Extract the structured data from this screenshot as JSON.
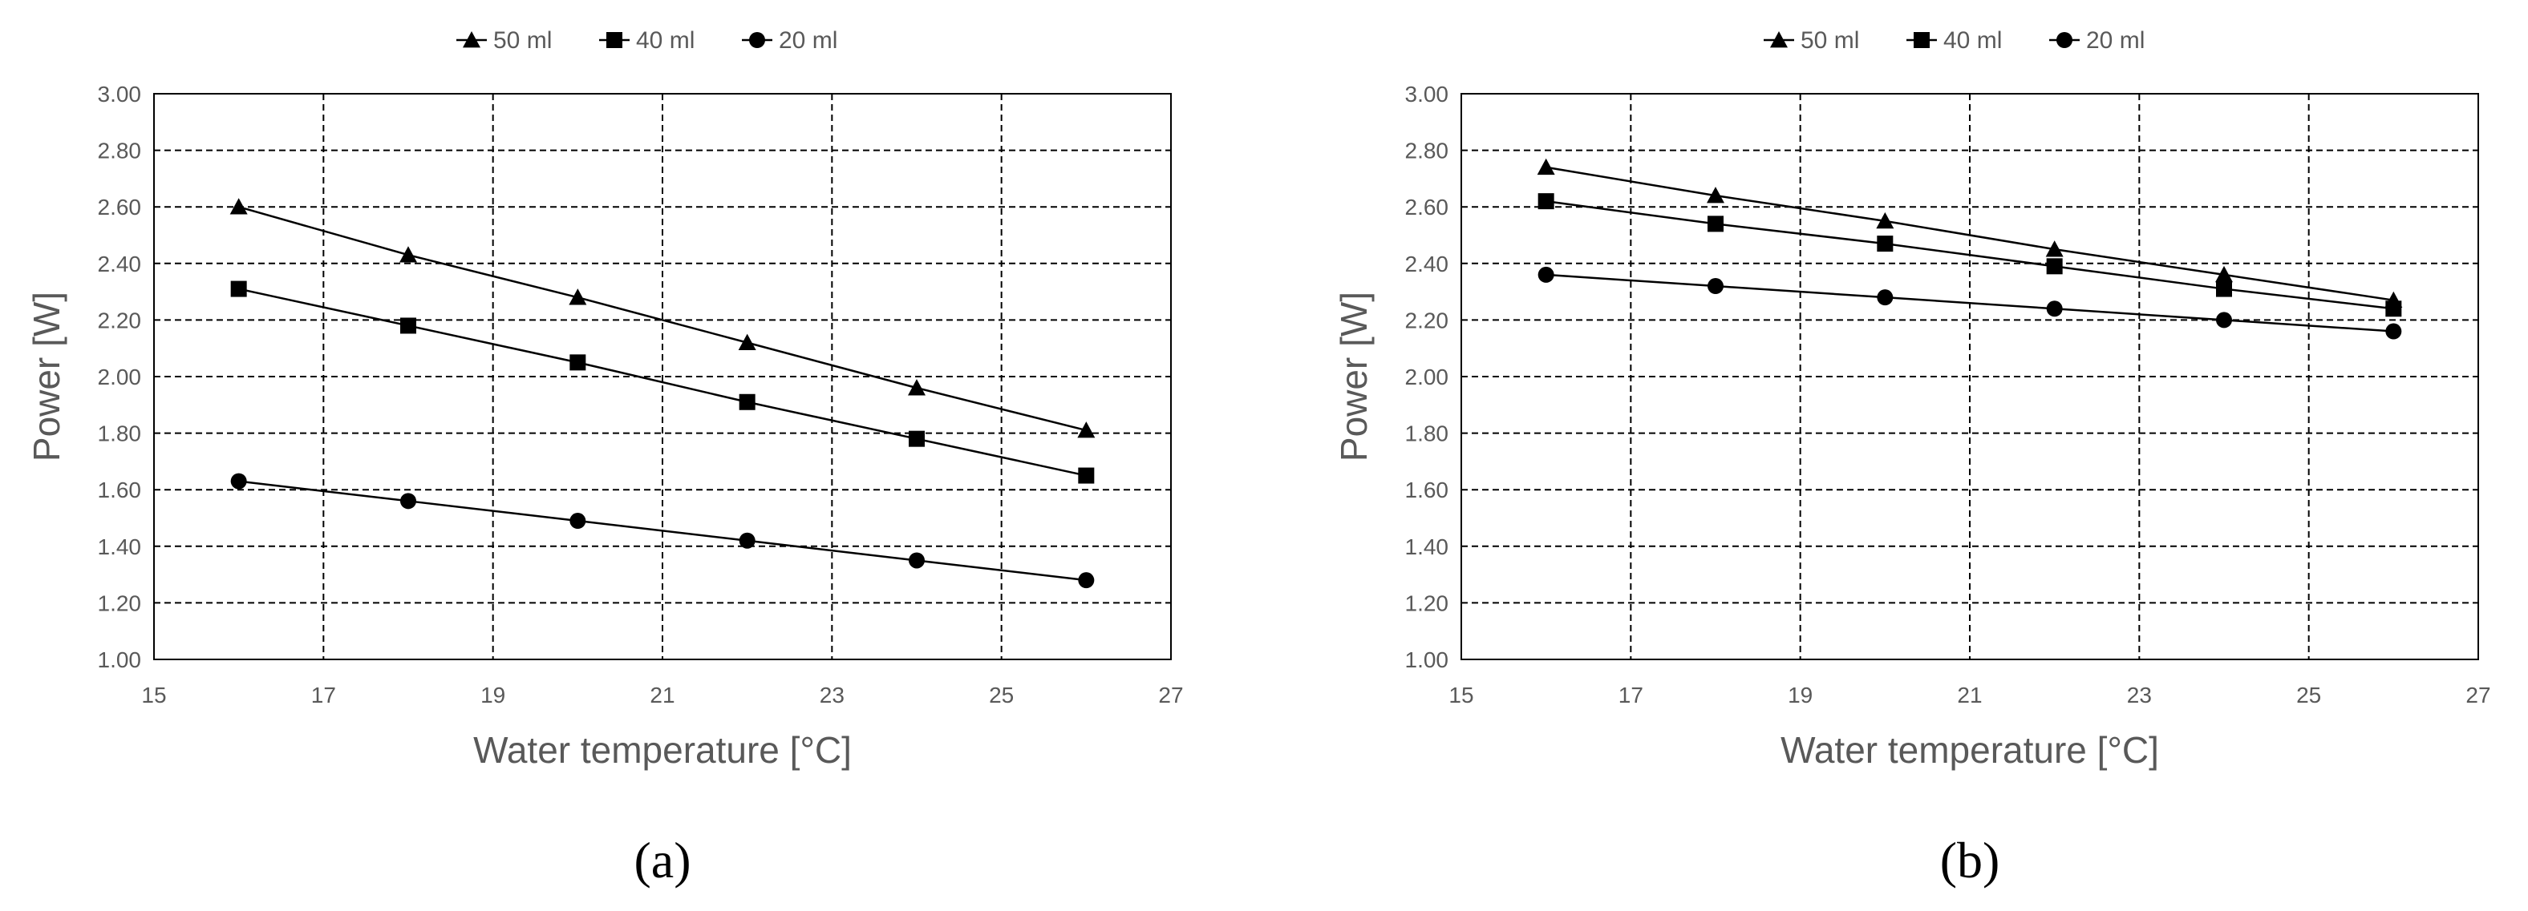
{
  "chart_data": [
    {
      "type": "line",
      "panel_label": "(a)",
      "xlabel": "Water temperature [°C]",
      "ylabel": "Power [W]",
      "xlim": [
        15,
        27
      ],
      "ylim": [
        1.0,
        3.0
      ],
      "x_ticks": [
        "15",
        "17",
        "19",
        "21",
        "23",
        "25",
        "27"
      ],
      "y_ticks": [
        "1.00",
        "1.20",
        "1.40",
        "1.60",
        "1.80",
        "2.00",
        "2.20",
        "2.40",
        "2.60",
        "2.80",
        "3.00"
      ],
      "grid": true,
      "legend_position": "top",
      "x": [
        16,
        18,
        20,
        22,
        24,
        26
      ],
      "series": [
        {
          "name": "50 ml",
          "marker": "triangle",
          "values": [
            2.6,
            2.43,
            2.28,
            2.12,
            1.96,
            1.81
          ]
        },
        {
          "name": "40 ml",
          "marker": "square",
          "values": [
            2.31,
            2.18,
            2.05,
            1.91,
            1.78,
            1.65
          ]
        },
        {
          "name": "20 ml",
          "marker": "circle",
          "values": [
            1.63,
            1.56,
            1.49,
            1.42,
            1.35,
            1.28
          ]
        }
      ]
    },
    {
      "type": "line",
      "panel_label": "(b)",
      "xlabel": "Water temperature [°C]",
      "ylabel": "Power [W]",
      "xlim": [
        15,
        27
      ],
      "ylim": [
        1.0,
        3.0
      ],
      "x_ticks": [
        "15",
        "17",
        "19",
        "21",
        "23",
        "25",
        "27"
      ],
      "y_ticks": [
        "1.00",
        "1.20",
        "1.40",
        "1.60",
        "1.80",
        "2.00",
        "2.20",
        "2.40",
        "2.60",
        "2.80",
        "3.00"
      ],
      "grid": true,
      "legend_position": "top",
      "x": [
        16,
        18,
        20,
        22,
        24,
        26
      ],
      "series": [
        {
          "name": "50 ml",
          "marker": "triangle",
          "values": [
            2.74,
            2.64,
            2.55,
            2.45,
            2.36,
            2.27
          ]
        },
        {
          "name": "40 ml",
          "marker": "square",
          "values": [
            2.62,
            2.54,
            2.47,
            2.39,
            2.31,
            2.24
          ]
        },
        {
          "name": "20 ml",
          "marker": "circle",
          "values": [
            2.36,
            2.32,
            2.28,
            2.24,
            2.2,
            2.16
          ]
        }
      ]
    }
  ]
}
